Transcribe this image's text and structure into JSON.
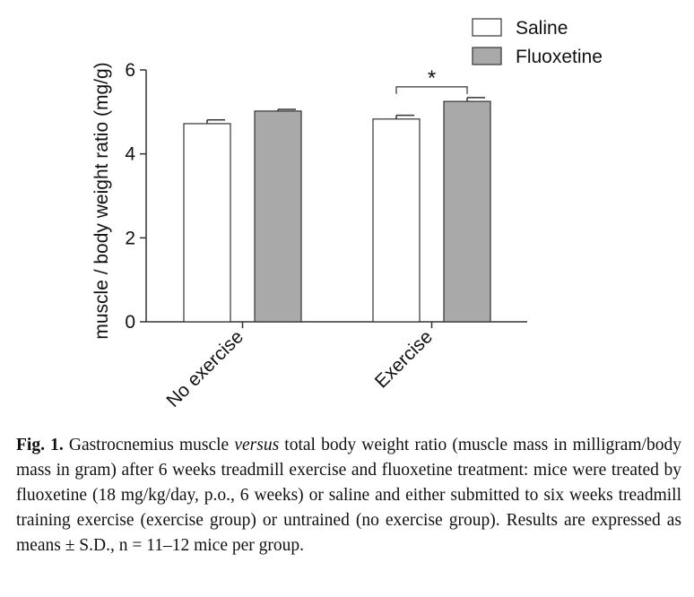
{
  "chart_data": {
    "type": "bar",
    "categories": [
      "No exercise",
      "Exercise"
    ],
    "series": [
      {
        "name": "Saline",
        "values": [
          4.72,
          4.83
        ],
        "errors": [
          0.09,
          0.09
        ],
        "color": "#ffffff"
      },
      {
        "name": "Fluoxetine",
        "values": [
          5.02,
          5.25
        ],
        "errors": [
          0.04,
          0.09
        ],
        "color": "#a9a9a9"
      }
    ],
    "ylabel": "muscle / body weight ratio (mg/g)",
    "xlabel": "",
    "ylim": [
      0,
      6
    ],
    "yticks": [
      0,
      2,
      4,
      6
    ],
    "legend_position": "top-right",
    "grid": false,
    "annotations": [
      {
        "text": "*",
        "category": "Exercise",
        "between": [
          "Saline",
          "Fluoxetine"
        ]
      }
    ]
  },
  "caption": {
    "label": "Fig. 1.",
    "part1": " Gastrocnemius muscle ",
    "emphasis": "versus",
    "part2": " total body weight ratio (muscle mass in milligram/body mass in gram) after 6 weeks treadmill exercise and fluoxetine treatment: mice were treated by fluoxetine (18 mg/kg/day, p.o., 6 weeks) or saline and either submitted to six weeks treadmill training exercise (exercise group) or untrained (no exercise group). Results are expressed as means ± S.D., n = 11–12 mice per group."
  }
}
